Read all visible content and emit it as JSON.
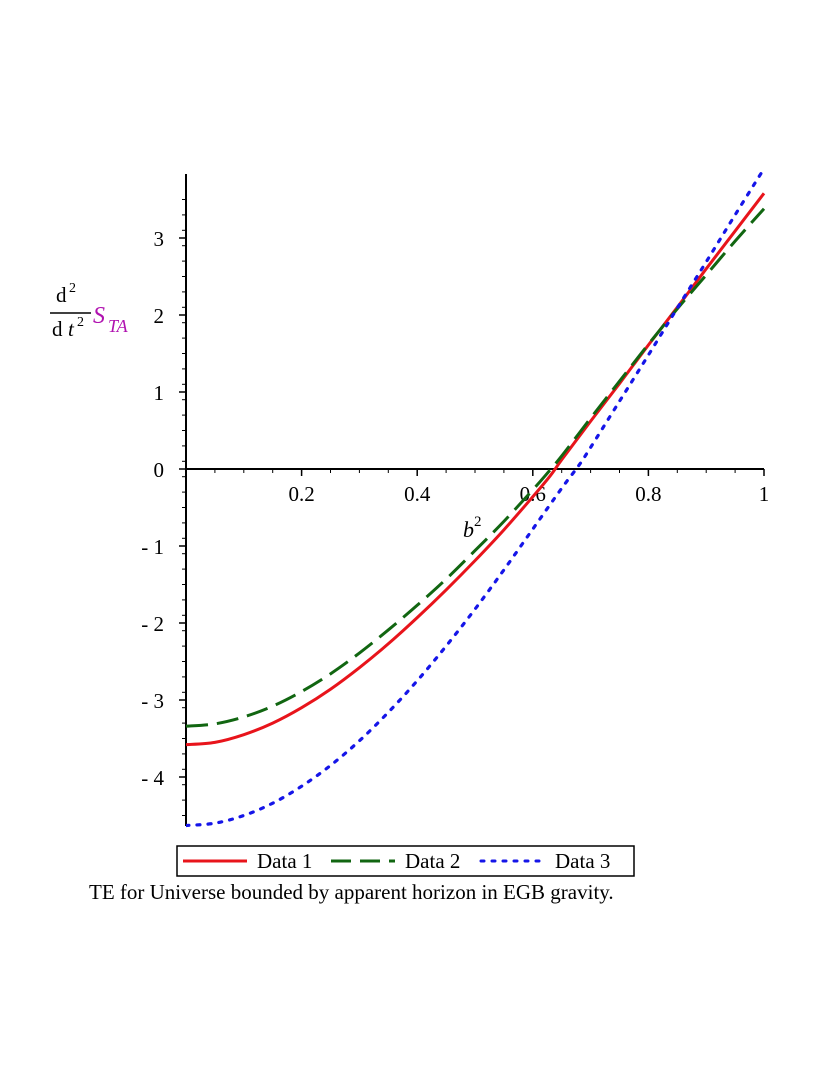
{
  "chart_data": {
    "type": "line",
    "title": "",
    "xlim": [
      0,
      1
    ],
    "ylim": [
      -4.65,
      3.85
    ],
    "x_ticks": [
      {
        "value": 0.2,
        "label": "0.2"
      },
      {
        "value": 0.4,
        "label": "0.4"
      },
      {
        "value": 0.6,
        "label": "0.6"
      },
      {
        "value": 0.8,
        "label": "0.8"
      },
      {
        "value": 1,
        "label": "1"
      }
    ],
    "y_ticks": [
      {
        "value": 3,
        "label": "3"
      },
      {
        "value": 2,
        "label": "2"
      },
      {
        "value": 1,
        "label": "1"
      },
      {
        "value": 0,
        "label": "0"
      },
      {
        "value": -1,
        "label": "- 1"
      },
      {
        "value": -2,
        "label": "- 2"
      },
      {
        "value": -3,
        "label": "- 3"
      },
      {
        "value": -4,
        "label": "- 4"
      }
    ],
    "xlabel": {
      "base": "b",
      "exp": "2"
    },
    "ylabel": {
      "num_d": "d",
      "num_exp": "2",
      "den_d": "d",
      "den_var": "t",
      "den_exp": "2",
      "func": "S",
      "sub": "TA"
    },
    "series": [
      {
        "name": "Data 1",
        "color": "#e8141b",
        "dash": "solid",
        "x": [
          0,
          0.05,
          0.1,
          0.15,
          0.2,
          0.25,
          0.3,
          0.35,
          0.4,
          0.45,
          0.5,
          0.55,
          0.6,
          0.63,
          0.65,
          0.7,
          0.75,
          0.8,
          0.85,
          0.9,
          0.95,
          1
        ],
        "y": [
          -3.58,
          -3.55,
          -3.45,
          -3.3,
          -3.1,
          -2.86,
          -2.58,
          -2.27,
          -1.93,
          -1.57,
          -1.19,
          -0.79,
          -0.36,
          -0.09,
          0.12,
          0.62,
          1.11,
          1.61,
          2.1,
          2.6,
          3.09,
          3.58
        ]
      },
      {
        "name": "Data 2",
        "color": "#116611",
        "dash": "long-dash",
        "x": [
          0,
          0.05,
          0.1,
          0.15,
          0.2,
          0.25,
          0.3,
          0.35,
          0.4,
          0.45,
          0.5,
          0.55,
          0.6,
          0.62,
          0.65,
          0.7,
          0.75,
          0.8,
          0.85,
          0.9,
          0.95,
          1
        ],
        "y": [
          -3.34,
          -3.31,
          -3.22,
          -3.08,
          -2.89,
          -2.66,
          -2.39,
          -2.09,
          -1.77,
          -1.43,
          -1.06,
          -0.68,
          -0.27,
          -0.1,
          0.17,
          0.66,
          1.14,
          1.62,
          2.08,
          2.52,
          2.96,
          3.38
        ]
      },
      {
        "name": "Data 3",
        "color": "#1515e8",
        "dash": "dotted",
        "x": [
          0,
          0.05,
          0.1,
          0.15,
          0.2,
          0.25,
          0.3,
          0.35,
          0.4,
          0.45,
          0.5,
          0.55,
          0.6,
          0.65,
          0.68,
          0.7,
          0.75,
          0.8,
          0.85,
          0.9,
          0.95,
          1
        ],
        "y": [
          -4.63,
          -4.6,
          -4.5,
          -4.34,
          -4.12,
          -3.85,
          -3.53,
          -3.16,
          -2.75,
          -2.3,
          -1.82,
          -1.31,
          -0.78,
          -0.25,
          0.05,
          0.28,
          0.88,
          1.48,
          2.09,
          2.69,
          3.3,
          3.9
        ]
      }
    ],
    "legend": {
      "position": "bottom"
    },
    "caption": "TE for Universe bounded by apparent horizon  in EGB gravity."
  }
}
